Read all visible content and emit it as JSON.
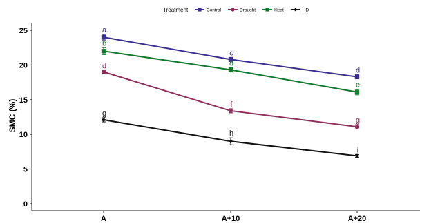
{
  "chart_data": {
    "type": "line",
    "legend": {
      "title": "Treatment",
      "placement": "top"
    },
    "ylabel": "SMC (%)",
    "xlabel": "",
    "categories": [
      "A",
      "A+10",
      "A+20"
    ],
    "ylim": [
      -1,
      26
    ],
    "yticks": [
      0,
      5,
      10,
      15,
      20,
      25
    ],
    "grid": false,
    "series": [
      {
        "name": "Control",
        "color": "#3a2f8f",
        "marker": "square",
        "values": [
          24.0,
          20.8,
          18.3
        ],
        "errors": [
          0.4,
          0.3,
          0.3
        ],
        "letters": [
          "a",
          "c",
          "d"
        ],
        "letter_color": "#3a2f8f"
      },
      {
        "name": "Drought",
        "color": "#8f2f5c",
        "marker": "circle",
        "values": [
          19.0,
          13.4,
          11.1
        ],
        "errors": [
          0.2,
          0.3,
          0.3
        ],
        "letters": [
          "d",
          "f",
          "g"
        ],
        "letter_color": "#8f2f5c"
      },
      {
        "name": "Heat",
        "color": "#117a2e",
        "marker": "square",
        "values": [
          22.0,
          19.3,
          16.1
        ],
        "errors": [
          0.5,
          0.3,
          0.4
        ],
        "letters": [
          "b",
          "d",
          "e"
        ],
        "letter_color": "#117a2e"
      },
      {
        "name": "HD",
        "color": "#111111",
        "marker": "diamond",
        "values": [
          12.1,
          9.0,
          6.9
        ],
        "errors": [
          0.3,
          0.5,
          0.2
        ],
        "letters": [
          "g",
          "h",
          "i"
        ],
        "letter_color": "#111111"
      }
    ]
  }
}
